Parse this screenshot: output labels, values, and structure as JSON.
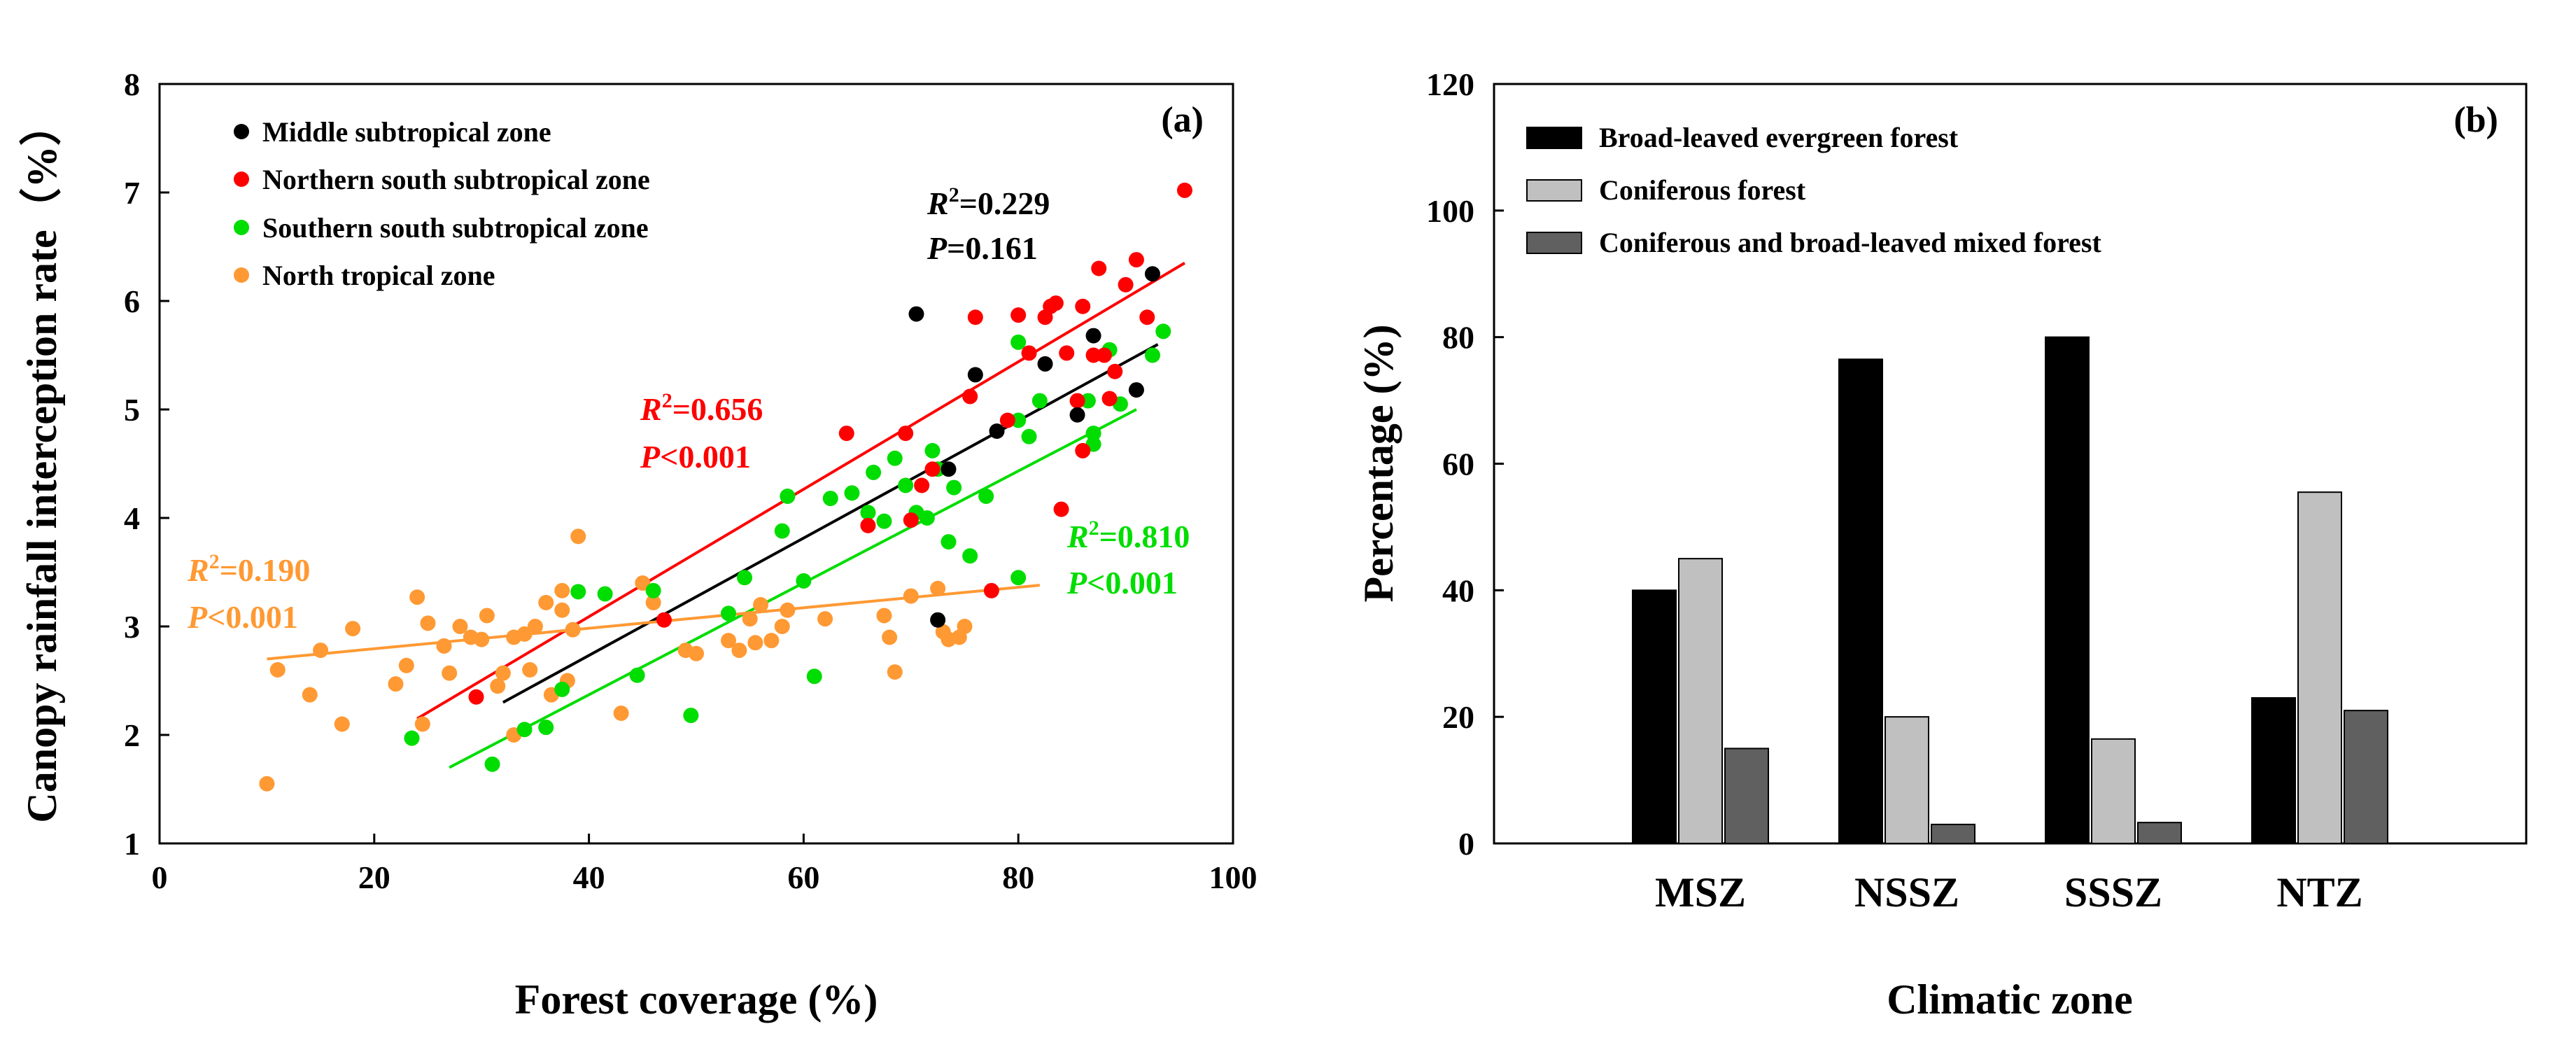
{
  "chart_data": [
    {
      "type": "scatter",
      "panel_label": "(a)",
      "xlabel": "Forest coverage (%)",
      "ylabel": "Canopy rainfall interception rate（%）",
      "xlim": [
        0,
        100
      ],
      "ylim": [
        1,
        8
      ],
      "xticks": [
        "0",
        "20",
        "40",
        "60",
        "80",
        "100"
      ],
      "yticks": [
        "1",
        "2",
        "3",
        "4",
        "5",
        "6",
        "7",
        "8"
      ],
      "legend_position": "top-left",
      "series": [
        {
          "name": "Middle subtropical zone",
          "color": "#000000",
          "points": [
            [
              70.5,
              5.88
            ],
            [
              73.5,
              4.45
            ],
            [
              76,
              5.32
            ],
            [
              78,
              4.8
            ],
            [
              82.5,
              5.42
            ],
            [
              85.5,
              4.95
            ],
            [
              87,
              5.68
            ],
            [
              91,
              5.18
            ],
            [
              92.5,
              6.25
            ],
            [
              72.5,
              3.06
            ]
          ],
          "fit": {
            "x": [
              32,
              93
            ],
            "y": [
              2.3,
              5.6
            ]
          },
          "r2_prefix": "R",
          "r2_exp": "2",
          "r2_value": "=0.229",
          "p_prefix": "P",
          "p_value": "=0.161"
        },
        {
          "name": "Northern south subtropical zone",
          "color": "#ff0000",
          "points": [
            [
              29.5,
              2.35
            ],
            [
              47,
              3.06
            ],
            [
              64,
              4.78
            ],
            [
              66,
              3.93
            ],
            [
              69.5,
              4.78
            ],
            [
              70,
              3.98
            ],
            [
              71,
              4.3
            ],
            [
              72,
              4.45
            ],
            [
              75.5,
              5.12
            ],
            [
              76,
              5.85
            ],
            [
              77.5,
              3.33
            ],
            [
              79,
              4.9
            ],
            [
              80,
              5.87
            ],
            [
              81,
              5.52
            ],
            [
              82.5,
              5.85
            ],
            [
              83,
              5.95
            ],
            [
              83.5,
              5.98
            ],
            [
              84,
              4.08
            ],
            [
              84.5,
              5.52
            ],
            [
              85.5,
              5.08
            ],
            [
              86,
              4.62
            ],
            [
              86,
              5.95
            ],
            [
              87,
              5.5
            ],
            [
              87.5,
              6.3
            ],
            [
              88,
              5.5
            ],
            [
              88.5,
              5.1
            ],
            [
              89,
              5.35
            ],
            [
              90,
              6.15
            ],
            [
              91,
              6.38
            ],
            [
              92,
              5.85
            ],
            [
              95.5,
              7.02
            ]
          ],
          "fit": {
            "x": [
              24,
              95.5
            ],
            "y": [
              2.15,
              6.35
            ]
          },
          "r2_prefix": "R",
          "r2_exp": "2",
          "r2_value": "=0.656",
          "p_prefix": "P",
          "p_value": "<0.001"
        },
        {
          "name": "Southern south subtropical zone",
          "color": "#00dd00",
          "points": [
            [
              23.5,
              1.97
            ],
            [
              31,
              1.73
            ],
            [
              34,
              2.05
            ],
            [
              36,
              2.07
            ],
            [
              37.5,
              2.42
            ],
            [
              39,
              3.32
            ],
            [
              41.5,
              3.3
            ],
            [
              44.5,
              2.55
            ],
            [
              46,
              3.33
            ],
            [
              49.5,
              2.18
            ],
            [
              53,
              3.12
            ],
            [
              54.5,
              3.45
            ],
            [
              58,
              3.88
            ],
            [
              58.5,
              4.2
            ],
            [
              60,
              3.42
            ],
            [
              61,
              2.54
            ],
            [
              62.5,
              4.18
            ],
            [
              64.5,
              4.23
            ],
            [
              66,
              4.05
            ],
            [
              66.5,
              4.42
            ],
            [
              67.5,
              3.97
            ],
            [
              68.5,
              4.55
            ],
            [
              69.5,
              4.3
            ],
            [
              70.5,
              4.05
            ],
            [
              71.5,
              4.0
            ],
            [
              72,
              4.62
            ],
            [
              72.5,
              4.45
            ],
            [
              73.5,
              3.78
            ],
            [
              74,
              4.28
            ],
            [
              75.5,
              3.65
            ],
            [
              77,
              4.2
            ],
            [
              80,
              3.45
            ],
            [
              80,
              5.62
            ],
            [
              80,
              4.9
            ],
            [
              81,
              4.75
            ],
            [
              82,
              5.08
            ],
            [
              86.5,
              5.08
            ],
            [
              87,
              4.68
            ],
            [
              87,
              4.78
            ],
            [
              88.5,
              5.55
            ],
            [
              89.5,
              5.05
            ],
            [
              92.5,
              5.5
            ],
            [
              93.5,
              5.72
            ]
          ],
          "fit": {
            "x": [
              27,
              91
            ],
            "y": [
              1.7,
              5.0
            ]
          },
          "r2_prefix": "R",
          "r2_exp": "2",
          "r2_value": "=0.810",
          "p_prefix": "P",
          "p_value": "<0.001"
        },
        {
          "name": "North tropical zone",
          "color": "#ff9933",
          "points": [
            [
              10,
              1.55
            ],
            [
              11,
              2.6
            ],
            [
              14,
              2.37
            ],
            [
              15,
              2.78
            ],
            [
              17,
              2.1
            ],
            [
              18,
              2.98
            ],
            [
              22,
              2.47
            ],
            [
              23,
              2.64
            ],
            [
              24,
              3.27
            ],
            [
              24.5,
              2.1
            ],
            [
              25,
              3.03
            ],
            [
              26.5,
              2.82
            ],
            [
              27,
              2.57
            ],
            [
              28,
              3.0
            ],
            [
              29,
              2.9
            ],
            [
              30,
              2.88
            ],
            [
              30.5,
              3.1
            ],
            [
              31.5,
              2.45
            ],
            [
              32,
              2.57
            ],
            [
              33,
              2.9
            ],
            [
              33,
              2.0
            ],
            [
              34,
              2.93
            ],
            [
              34.5,
              2.6
            ],
            [
              35,
              3.0
            ],
            [
              36,
              3.22
            ],
            [
              36.5,
              2.37
            ],
            [
              37.5,
              3.15
            ],
            [
              37.5,
              3.33
            ],
            [
              38,
              2.5
            ],
            [
              38.5,
              2.97
            ],
            [
              39,
              3.83
            ],
            [
              43,
              2.2
            ],
            [
              45,
              3.4
            ],
            [
              46,
              3.22
            ],
            [
              49,
              2.78
            ],
            [
              50,
              2.75
            ],
            [
              53,
              2.87
            ],
            [
              54,
              2.78
            ],
            [
              55,
              3.07
            ],
            [
              55.5,
              2.85
            ],
            [
              56,
              3.2
            ],
            [
              57,
              2.87
            ],
            [
              58,
              3.0
            ],
            [
              58.5,
              3.15
            ],
            [
              62,
              3.07
            ],
            [
              67.5,
              3.1
            ],
            [
              68,
              2.9
            ],
            [
              68.5,
              2.58
            ],
            [
              70,
              3.28
            ],
            [
              73,
              2.95
            ],
            [
              73.5,
              2.88
            ],
            [
              74.5,
              2.9
            ],
            [
              75,
              3.0
            ],
            [
              72.5,
              3.35
            ]
          ],
          "fit": {
            "x": [
              10,
              82
            ],
            "y": [
              2.7,
              3.38
            ]
          },
          "r2_prefix": "R",
          "r2_exp": "2",
          "r2_value": "=0.190",
          "p_prefix": "P",
          "p_value": "<0.001"
        }
      ]
    },
    {
      "type": "bar",
      "panel_label": "(b)",
      "xlabel": "Climatic zone",
      "ylabel": "Percentage (%)",
      "ylim": [
        0,
        120
      ],
      "yticks": [
        "0",
        "20",
        "40",
        "60",
        "80",
        "100",
        "120"
      ],
      "categories": [
        "MSZ",
        "NSSZ",
        "SSSZ",
        "NTZ"
      ],
      "legend_position": "top-left",
      "series": [
        {
          "name": "Broad-leaved evergreen forest",
          "color": "#000000",
          "values": [
            40,
            76.5,
            80,
            23
          ]
        },
        {
          "name": "Coniferous forest",
          "color": "#c0c0c0",
          "values": [
            45,
            20,
            16.5,
            55.5
          ]
        },
        {
          "name": "Coniferous and broad-leaved mixed forest",
          "color": "#606060",
          "values": [
            15,
            3,
            3.3,
            21
          ]
        }
      ]
    }
  ]
}
